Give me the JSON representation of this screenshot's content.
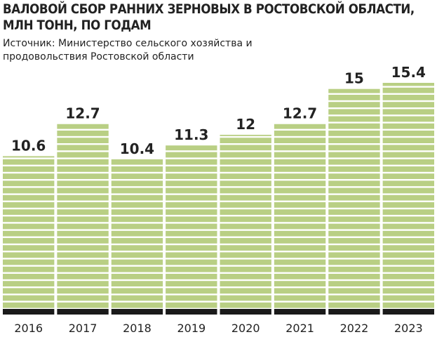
{
  "chart_data": {
    "type": "bar",
    "title": "ВАЛОВОЙ СБОР РАННИХ ЗЕРНОВЫХ В РОСТОВСКОЙ ОБЛАСТИ, МЛН ТОНН, ПО ГОДАМ",
    "subtitle": "Источник: Министерство сельского хозяйства и продовольствия Ростовской области",
    "categories": [
      "2016",
      "2017",
      "2018",
      "2019",
      "2020",
      "2021",
      "2022",
      "2023"
    ],
    "values": [
      10.6,
      12.7,
      10.4,
      11.3,
      12,
      12.7,
      15,
      15.4
    ],
    "color": "#b9cf84"
  }
}
